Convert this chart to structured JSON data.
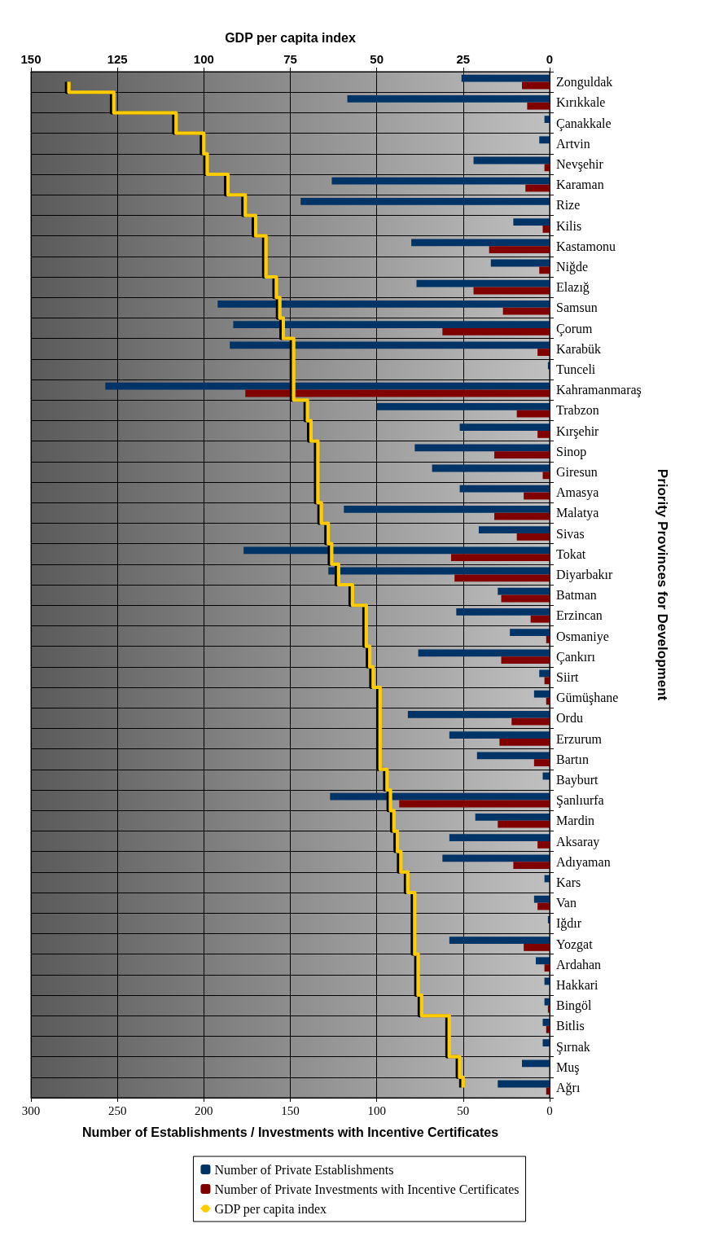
{
  "chart_data": {
    "type": "bar",
    "orientation": "horizontal",
    "ylabel": "Priority Provinces for Development",
    "xlabel": "Number of Establishments / Investments with Incentive Certificates",
    "x2label": "GDP per capita index",
    "categories": [
      "Zonguldak",
      "Kırıkkale",
      "Çanakkale",
      "Artvin",
      "Nevşehir",
      "Karaman",
      "Rize",
      "Kilis",
      "Kastamonu",
      "Niğde",
      "Elazığ",
      "Samsun",
      "Çorum",
      "Karabük",
      "Tunceli",
      "Kahramanmaraş",
      "Trabzon",
      "Kırşehir",
      "Sinop",
      "Giresun",
      "Amasya",
      "Malatya",
      "Sivas",
      "Tokat",
      "Diyarbakır",
      "Batman",
      "Erzincan",
      "Osmaniye",
      "Çankırı",
      "Siirt",
      "Gümüşhane",
      "Ordu",
      "Erzurum",
      "Bartın",
      "Bayburt",
      "Şanlıurfa",
      "Mardin",
      "Aksaray",
      "Adıyaman",
      "Kars",
      "Van",
      "Iğdır",
      "Yozgat",
      "Ardahan",
      "Hakkari",
      "Bingöl",
      "Bitlis",
      "Şırnak",
      "Muş",
      "Ağrı"
    ],
    "series": [
      {
        "name": "Number of Private Establishments",
        "color": "#003366",
        "values": [
          51,
          117,
          3,
          6,
          44,
          126,
          144,
          21,
          80,
          34,
          77,
          192,
          183,
          185,
          1,
          257,
          100,
          52,
          78,
          68,
          52,
          119,
          41,
          177,
          128,
          30,
          54,
          23,
          76,
          6,
          9,
          82,
          58,
          42,
          4,
          127,
          43,
          58,
          62,
          3,
          9,
          1,
          58,
          8,
          3,
          3,
          4,
          4,
          16,
          30
        ]
      },
      {
        "name": "Number of Private Investments with Incentive Certificates",
        "color": "#800000",
        "values": [
          16,
          13,
          0,
          0,
          3,
          14,
          0,
          4,
          35,
          6,
          44,
          27,
          62,
          7,
          0,
          176,
          19,
          7,
          32,
          4,
          15,
          32,
          19,
          57,
          55,
          28,
          11,
          2,
          28,
          3,
          2,
          22,
          29,
          9,
          0,
          87,
          30,
          7,
          21,
          0,
          7,
          0,
          15,
          3,
          0,
          1,
          2,
          0,
          0,
          2
        ]
      },
      {
        "name": "GDP per capita index",
        "type": "step",
        "axis": "x2",
        "color": "#ffcc00",
        "values": [
          139,
          126,
          108,
          100,
          99,
          93,
          88,
          85,
          82,
          82,
          79,
          78,
          77,
          74,
          74,
          74,
          70,
          69,
          67,
          67,
          67,
          66,
          64,
          63,
          61,
          57,
          53,
          53,
          52,
          51,
          49,
          49,
          49,
          49,
          47,
          46,
          45,
          44,
          43,
          41,
          39,
          39,
          39,
          38,
          38,
          37,
          29,
          29,
          26,
          25
        ]
      }
    ],
    "xlim": [
      300,
      0
    ],
    "xticks": [
      0,
      50,
      100,
      150,
      200,
      250,
      300
    ],
    "x2lim": [
      150,
      0
    ],
    "x2ticks": [
      0,
      25,
      50,
      75,
      100,
      125,
      150
    ],
    "grid": true,
    "legend": "bottom",
    "marker": "none"
  }
}
